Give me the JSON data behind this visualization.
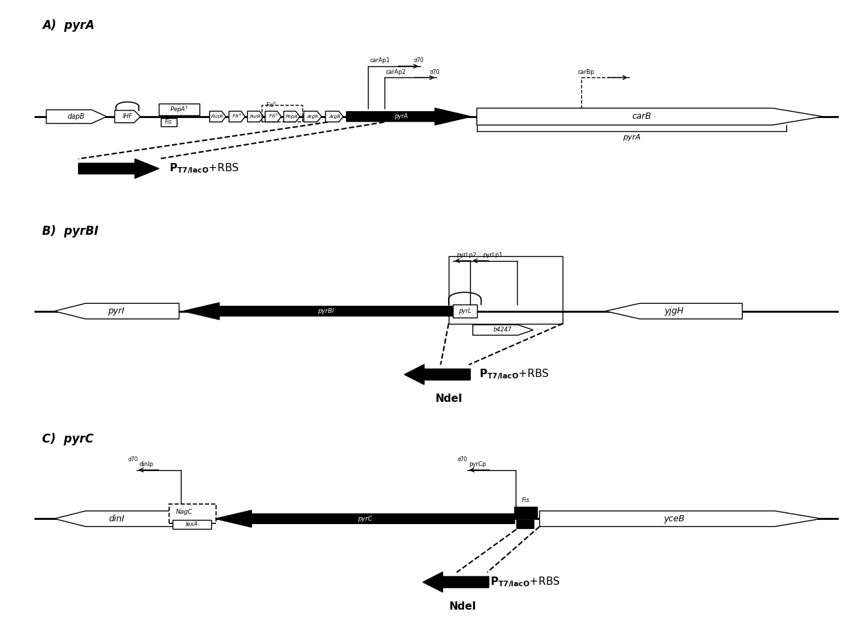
{
  "panel_A_title": "A)  pyrA",
  "panel_B_title": "B)  pyrBI",
  "panel_C_title": "C)  pyrC",
  "bg_color": "#ffffff"
}
